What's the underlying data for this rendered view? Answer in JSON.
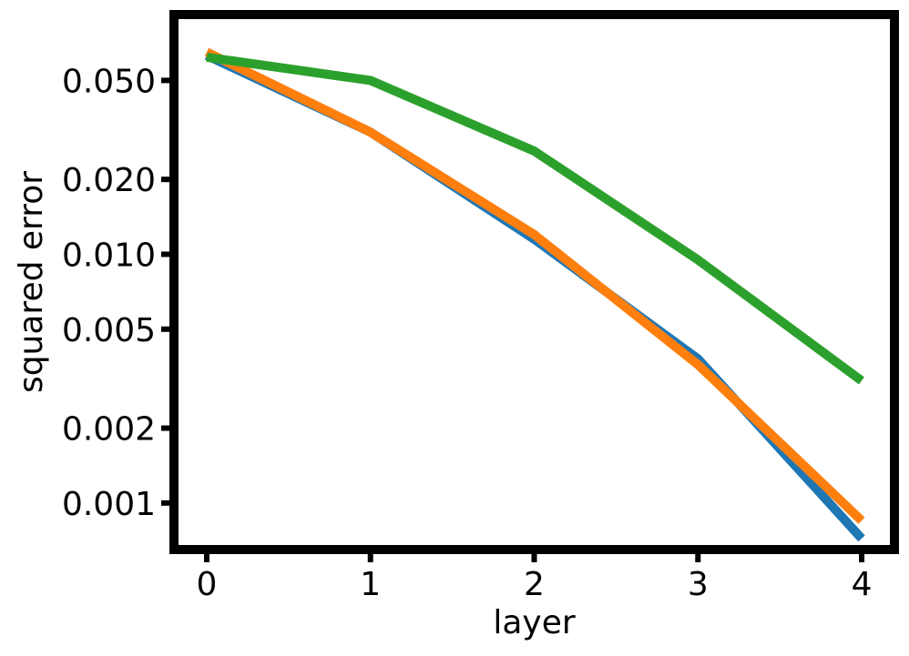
{
  "chart_data": {
    "type": "line",
    "xlabel": "layer",
    "ylabel": "squared error",
    "yscale": "log",
    "grid": false,
    "legend": "none",
    "xlim": [
      -0.2,
      4.2
    ],
    "ylim": [
      0.00065,
      0.092
    ],
    "xticks": [
      0,
      1,
      2,
      3,
      4
    ],
    "xtick_labels": [
      "0",
      "1",
      "2",
      "3",
      "4"
    ],
    "yticks": [
      0.001,
      0.002,
      0.005,
      0.01,
      0.02,
      0.05
    ],
    "ytick_labels": [
      "0.001",
      "0.002",
      "0.005",
      "0.010",
      "0.020",
      "0.050"
    ],
    "x": [
      0,
      1,
      2,
      3,
      4
    ],
    "series": [
      {
        "color": "#1f77b4",
        "values": [
          0.063,
          0.031,
          0.0115,
          0.0038,
          0.00072
        ]
      },
      {
        "color": "#ff7f0e",
        "values": [
          0.065,
          0.031,
          0.012,
          0.0036,
          0.00085
        ]
      },
      {
        "color": "#2ca02c",
        "values": [
          0.062,
          0.05,
          0.026,
          0.0095,
          0.0031
        ]
      }
    ]
  }
}
